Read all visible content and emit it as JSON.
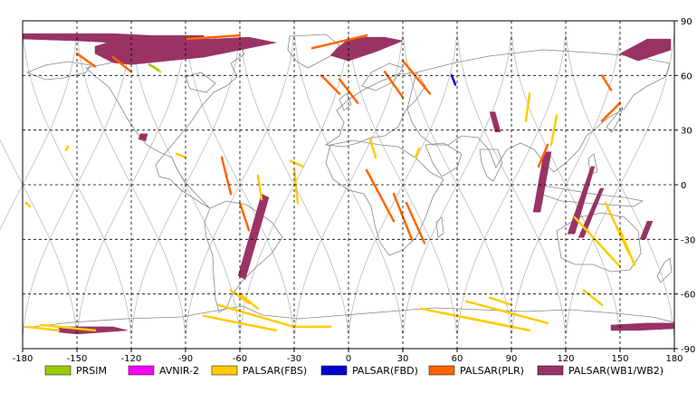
{
  "chart_data": {
    "type": "map",
    "projection": "equirectangular",
    "grid": true,
    "xlim": [
      -180,
      180
    ],
    "ylim": [
      -90,
      90
    ],
    "x_ticks": [
      -180,
      -150,
      -120,
      -90,
      -60,
      -30,
      0,
      30,
      60,
      90,
      120,
      150,
      180
    ],
    "x_tick_labels": [
      "-180",
      "-150",
      "-120",
      "-90",
      "-60",
      "-30",
      "0",
      "30",
      "60",
      "90",
      "120",
      "150",
      "180"
    ],
    "y_ticks": [
      90,
      60,
      30,
      0,
      -30,
      -60,
      -90
    ],
    "y_tick_labels": [
      "90",
      "60",
      "30",
      "0",
      "-30",
      "-60",
      "-90"
    ],
    "legend_position": "bottom",
    "legend": [
      {
        "label": "PRSIM",
        "color": "#99cc00"
      },
      {
        "label": "AVNIR-2",
        "color": "#ff00ff"
      },
      {
        "label": "PALSAR(FBS)",
        "color": "#ffcc00"
      },
      {
        "label": "PALSAR(FBD)",
        "color": "#0000cc"
      },
      {
        "label": "PALSAR(PLR)",
        "color": "#ff6600"
      },
      {
        "label": "PALSAR(WB1/WB2)",
        "color": "#993366"
      }
    ],
    "colors": {
      "coastline": "#888888",
      "orbit_track": "#bbbbbb",
      "grid": "#000000"
    },
    "series": [
      {
        "name": "PALSAR(WB1/WB2)",
        "swaths": [
          [
            [
              -180,
              80
            ],
            [
              -150,
              79
            ],
            [
              -130,
              78
            ],
            [
              -110,
              77
            ],
            [
              -80,
              78
            ],
            [
              -80,
              82
            ],
            [
              -110,
              82
            ],
            [
              -130,
              83
            ],
            [
              -160,
              83
            ],
            [
              -180,
              83
            ]
          ],
          [
            [
              -140,
              72
            ],
            [
              -130,
              67
            ],
            [
              -120,
              66
            ],
            [
              -80,
              70
            ],
            [
              -60,
              74
            ],
            [
              -40,
              78
            ],
            [
              -55,
              81
            ],
            [
              -75,
              80
            ],
            [
              -100,
              80
            ],
            [
              -130,
              79
            ],
            [
              -140,
              76
            ]
          ],
          [
            [
              -10,
              71
            ],
            [
              0,
              68
            ],
            [
              15,
              73
            ],
            [
              30,
              79
            ],
            [
              20,
              81
            ],
            [
              10,
              81
            ],
            [
              0,
              80
            ],
            [
              -5,
              76
            ]
          ],
          [
            [
              -116,
              25
            ],
            [
              -112,
              24
            ],
            [
              -111,
              28
            ],
            [
              -115,
              28
            ]
          ],
          [
            [
              -48,
              -5
            ],
            [
              -44,
              -7
            ],
            [
              -57,
              -52
            ],
            [
              -61,
              -50
            ]
          ],
          [
            [
              78,
              40
            ],
            [
              81,
              40
            ],
            [
              84,
              29
            ],
            [
              81,
              29
            ]
          ],
          [
            [
              108,
              18
            ],
            [
              112,
              18
            ],
            [
              106,
              -15
            ],
            [
              102,
              -15
            ]
          ],
          [
            [
              134,
              10
            ],
            [
              136,
              10
            ],
            [
              125,
              -27
            ],
            [
              121,
              -27
            ]
          ],
          [
            [
              139,
              -2
            ],
            [
              141,
              -2
            ],
            [
              130,
              -29
            ],
            [
              127,
              -29
            ]
          ],
          [
            [
              165,
              -20
            ],
            [
              168,
              -20
            ],
            [
              164,
              -30
            ],
            [
              161,
              -30
            ]
          ],
          [
            [
              150,
              72
            ],
            [
              160,
              68
            ],
            [
              178,
              74
            ],
            [
              178,
              80
            ],
            [
              165,
              80
            ]
          ],
          [
            [
              -160,
              -78
            ],
            [
              -130,
              -78
            ],
            [
              -122,
              -80
            ],
            [
              -150,
              -82
            ],
            [
              -160,
              -81
            ]
          ],
          [
            [
              145,
              -77
            ],
            [
              165,
              -76
            ],
            [
              180,
              -76
            ],
            [
              180,
              -79
            ],
            [
              160,
              -80
            ],
            [
              145,
              -80
            ]
          ]
        ]
      },
      {
        "name": "PALSAR(FBS)",
        "lines": [
          [
            [
              -60,
              -60
            ],
            [
              -50,
              -68
            ]
          ],
          [
            [
              -65,
              -58
            ],
            [
              -55,
              -65
            ]
          ],
          [
            [
              -72,
              -66
            ],
            [
              -30,
              -78
            ],
            [
              -10,
              -78
            ]
          ],
          [
            [
              -80,
              -72
            ],
            [
              -40,
              -80
            ]
          ],
          [
            [
              -170,
              -77
            ],
            [
              -140,
              -80
            ]
          ],
          [
            [
              -178,
              -78
            ],
            [
              -160,
              -80
            ]
          ],
          [
            [
              40,
              -68
            ],
            [
              90,
              -78
            ]
          ],
          [
            [
              65,
              -64
            ],
            [
              110,
              -76
            ]
          ],
          [
            [
              50,
              -70
            ],
            [
              100,
              -80
            ]
          ],
          [
            [
              78,
              -62
            ],
            [
              90,
              -66
            ]
          ],
          [
            [
              130,
              -58
            ],
            [
              140,
              -66
            ]
          ],
          [
            [
              125,
              -18
            ],
            [
              150,
              -45
            ]
          ],
          [
            [
              142,
              -10
            ],
            [
              155,
              -38
            ]
          ],
          [
            [
              150,
              -25
            ],
            [
              158,
              -44
            ]
          ],
          [
            [
              12,
              25
            ],
            [
              15,
              15
            ]
          ],
          [
            [
              -32,
              13
            ],
            [
              -25,
              10
            ]
          ],
          [
            [
              -50,
              5
            ],
            [
              -48,
              -8
            ]
          ],
          [
            [
              -95,
              17
            ],
            [
              -90,
              15
            ]
          ],
          [
            [
              -155,
              21
            ],
            [
              -156,
              19
            ]
          ],
          [
            [
              -178,
              -10
            ],
            [
              -176,
              -12
            ]
          ],
          [
            [
              115,
              38
            ],
            [
              112,
              22
            ]
          ],
          [
            [
              100,
              50
            ],
            [
              98,
              35
            ]
          ],
          [
            [
              37,
              15
            ],
            [
              39,
              20
            ]
          ],
          [
            [
              -108,
              65
            ],
            [
              -104,
              62
            ]
          ],
          [
            [
              -30,
              8
            ],
            [
              -28,
              -10
            ]
          ]
        ]
      },
      {
        "name": "PALSAR(PLR)",
        "lines": [
          [
            [
              -150,
              72
            ],
            [
              -140,
              65
            ]
          ],
          [
            [
              -130,
              70
            ],
            [
              -120,
              62
            ]
          ],
          [
            [
              -15,
              60
            ],
            [
              -5,
              50
            ]
          ],
          [
            [
              -5,
              58
            ],
            [
              5,
              45
            ]
          ],
          [
            [
              20,
              62
            ],
            [
              30,
              48
            ]
          ],
          [
            [
              30,
              68
            ],
            [
              45,
              50
            ]
          ],
          [
            [
              10,
              8
            ],
            [
              25,
              -20
            ]
          ],
          [
            [
              25,
              -5
            ],
            [
              35,
              -30
            ]
          ],
          [
            [
              32,
              -10
            ],
            [
              42,
              -32
            ]
          ],
          [
            [
              110,
              22
            ],
            [
              105,
              10
            ]
          ],
          [
            [
              150,
              45
            ],
            [
              140,
              35
            ]
          ],
          [
            [
              140,
              60
            ],
            [
              145,
              52
            ]
          ],
          [
            [
              -60,
              -10
            ],
            [
              -55,
              -25
            ]
          ],
          [
            [
              -70,
              15
            ],
            [
              -65,
              -5
            ]
          ],
          [
            [
              -20,
              75
            ],
            [
              10,
              82
            ]
          ],
          [
            [
              -90,
              80
            ],
            [
              -60,
              82
            ]
          ]
        ]
      },
      {
        "name": "PALSAR(FBD)",
        "lines": [
          [
            [
              57,
              60
            ],
            [
              59,
              55
            ]
          ]
        ]
      },
      {
        "name": "PRSIM",
        "lines": [
          [
            [
              -110,
              66
            ],
            [
              -105,
              63
            ]
          ]
        ]
      }
    ]
  }
}
